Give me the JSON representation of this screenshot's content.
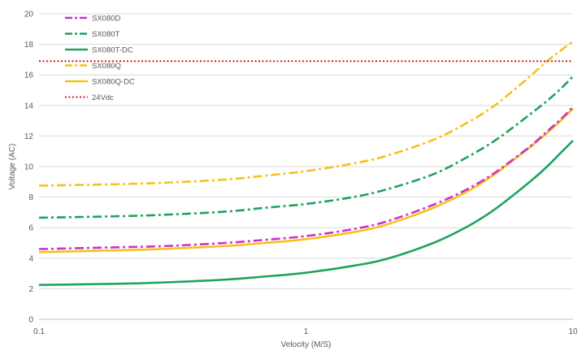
{
  "chart_data": {
    "type": "line",
    "xscale": "log",
    "xlim": [
      0.1,
      10
    ],
    "ylim": [
      0,
      20
    ],
    "xticks": [
      0.1,
      1,
      10
    ],
    "xtick_labels": [
      "0.1",
      "1",
      "10"
    ],
    "yticks": [
      0,
      2,
      4,
      6,
      8,
      10,
      12,
      14,
      16,
      18,
      20
    ],
    "ytick_labels": [
      "0",
      "2",
      "4",
      "6",
      "8",
      "10",
      "12",
      "14",
      "16",
      "18",
      "20"
    ],
    "xlabel": "Velocity (M/S)",
    "ylabel": "Voltage  (AC)",
    "grid": "horizontal",
    "legend_position": "top-left",
    "series": [
      {
        "name": "SX080D",
        "color": "#cc33cc",
        "style": "dashdot",
        "x": [
          0.1,
          0.2,
          0.3,
          0.5,
          0.7,
          1,
          1.5,
          2,
          3,
          4,
          5,
          6,
          7,
          8,
          9,
          10
        ],
        "y": [
          4.6,
          4.72,
          4.8,
          5.0,
          5.2,
          5.45,
          5.9,
          6.4,
          7.5,
          8.5,
          9.5,
          10.5,
          11.4,
          12.3,
          13.1,
          13.9
        ]
      },
      {
        "name": "SX080T",
        "color": "#1fa35c",
        "style": "dashdot",
        "x": [
          0.1,
          0.2,
          0.3,
          0.5,
          0.7,
          1,
          1.5,
          2,
          3,
          4,
          5,
          6,
          7,
          8,
          9,
          10
        ],
        "y": [
          6.65,
          6.75,
          6.85,
          7.05,
          7.3,
          7.55,
          8.0,
          8.5,
          9.5,
          10.6,
          11.6,
          12.6,
          13.5,
          14.3,
          15.1,
          15.9
        ]
      },
      {
        "name": "SX080T-DC",
        "color": "#1fa35c",
        "style": "solid",
        "x": [
          0.1,
          0.2,
          0.3,
          0.5,
          0.7,
          1,
          1.5,
          2,
          3,
          4,
          5,
          6,
          7,
          8,
          9,
          10
        ],
        "y": [
          2.25,
          2.33,
          2.42,
          2.6,
          2.8,
          3.05,
          3.5,
          3.95,
          5.0,
          6.05,
          7.1,
          8.15,
          9.1,
          10.0,
          10.9,
          11.7
        ]
      },
      {
        "name": "SX080Q",
        "color": "#f4c21b",
        "style": "dashdot",
        "x": [
          0.1,
          0.2,
          0.3,
          0.5,
          0.7,
          1,
          1.5,
          2,
          3,
          4,
          5,
          6,
          7,
          8,
          9,
          10
        ],
        "y": [
          8.75,
          8.85,
          8.95,
          9.15,
          9.4,
          9.7,
          10.2,
          10.7,
          11.75,
          12.85,
          13.9,
          15.0,
          16.0,
          16.9,
          17.6,
          18.2
        ]
      },
      {
        "name": "SX080Q-DC",
        "color": "#f4c21b",
        "style": "solid",
        "x": [
          0.1,
          0.2,
          0.3,
          0.5,
          0.7,
          1,
          1.5,
          2,
          3,
          4,
          5,
          6,
          7,
          8,
          9,
          10
        ],
        "y": [
          4.4,
          4.52,
          4.62,
          4.8,
          5.0,
          5.25,
          5.7,
          6.2,
          7.3,
          8.35,
          9.4,
          10.45,
          11.35,
          12.2,
          13.0,
          13.8
        ]
      },
      {
        "name": "24Vdc",
        "color": "#cc1f1f",
        "style": "dotted",
        "x": [
          0.1,
          10
        ],
        "y": [
          16.9,
          16.9
        ]
      }
    ]
  }
}
